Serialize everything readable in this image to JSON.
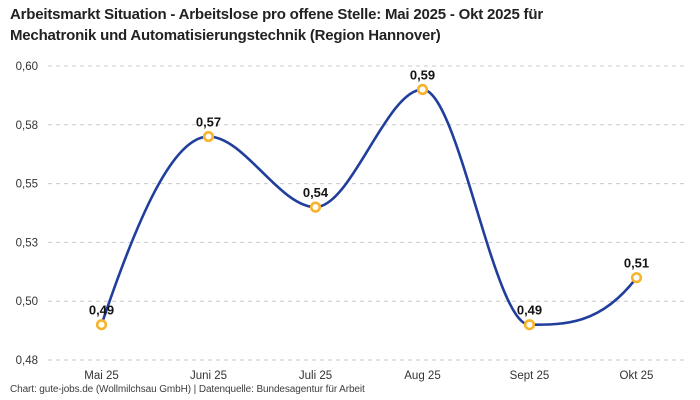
{
  "page": {
    "title_line1": "Arbeitsmarkt Situation - Arbeitslose pro offene Stelle: Mai 2025 - Okt 2025 für",
    "title_line2": "Mechatronik und Automatisierungstechnik (Region Hannover)",
    "footer": "Chart: gute-jobs.de (Wollmilchsau GmbH) | Datenquelle: Bundesagentur für Arbeit"
  },
  "chart_data": {
    "type": "line",
    "title": "Arbeitsmarkt Situation - Arbeitslose pro offene Stelle: Mai 2025 - Okt 2025 für Mechatronik und Automatisierungstechnik (Region Hannover)",
    "categories": [
      "Mai 25",
      "Juni 25",
      "Juli 25",
      "Aug 25",
      "Sept 25",
      "Okt 25"
    ],
    "values": [
      0.49,
      0.57,
      0.54,
      0.59,
      0.49,
      0.51
    ],
    "point_labels": [
      "0,49",
      "0,57",
      "0,54",
      "0,59",
      "0,49",
      "0,51"
    ],
    "y_ticks": [
      {
        "v": 0.6,
        "label": "0,60"
      },
      {
        "v": 0.575,
        "label": "0,58"
      },
      {
        "v": 0.55,
        "label": "0,55"
      },
      {
        "v": 0.525,
        "label": "0,53"
      },
      {
        "v": 0.5,
        "label": "0,50"
      },
      {
        "v": 0.475,
        "label": "0,48"
      }
    ],
    "ylim": [
      0.475,
      0.6
    ],
    "xlabel": "",
    "ylabel": "",
    "legend": "none",
    "grid": "horizontal-dashed",
    "curve": "monotone",
    "colors": {
      "line": "#203e9c",
      "marker_ring": "#f7b32b",
      "marker_fill": "#ffffff",
      "grid": "#c9c9c9",
      "value_label": "#141414",
      "tick_label": "#333333"
    }
  }
}
